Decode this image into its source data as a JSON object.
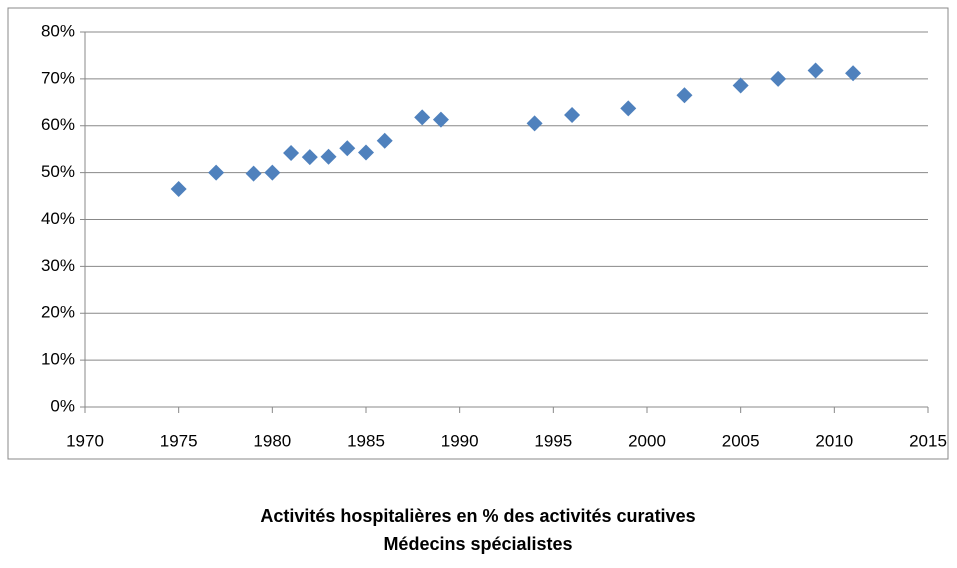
{
  "chart_data": {
    "type": "scatter",
    "title": "Activités hospitalières en % des activités curatives",
    "subtitle": "Médecins spécialistes",
    "x": [
      1975,
      1977,
      1979,
      1980,
      1981,
      1982,
      1983,
      1984,
      1985,
      1986,
      1988,
      1989,
      1994,
      1996,
      1999,
      2002,
      2005,
      2007,
      2009,
      2011
    ],
    "values": [
      46.5,
      50,
      49.8,
      50,
      54.2,
      53.3,
      53.4,
      55.2,
      54.3,
      56.8,
      61.8,
      61.3,
      60.5,
      62.3,
      63.7,
      66.5,
      68.6,
      70,
      71.8,
      71.2
    ],
    "color": "#4f81bd",
    "xlim": [
      1970,
      2015
    ],
    "xticks": [
      1970,
      1975,
      1980,
      1985,
      1990,
      1995,
      2000,
      2005,
      2010,
      2015
    ],
    "ylim": [
      0,
      80
    ],
    "yticks": [
      {
        "value": 0,
        "label": "0%"
      },
      {
        "value": 10,
        "label": "10%"
      },
      {
        "value": 20,
        "label": "20%"
      },
      {
        "value": 30,
        "label": "30%"
      },
      {
        "value": 40,
        "label": "40%"
      },
      {
        "value": 50,
        "label": "50%"
      },
      {
        "value": 60,
        "label": "60%"
      },
      {
        "value": 70,
        "label": "70%"
      },
      {
        "value": 80,
        "label": "80%"
      }
    ],
    "grid": true
  }
}
